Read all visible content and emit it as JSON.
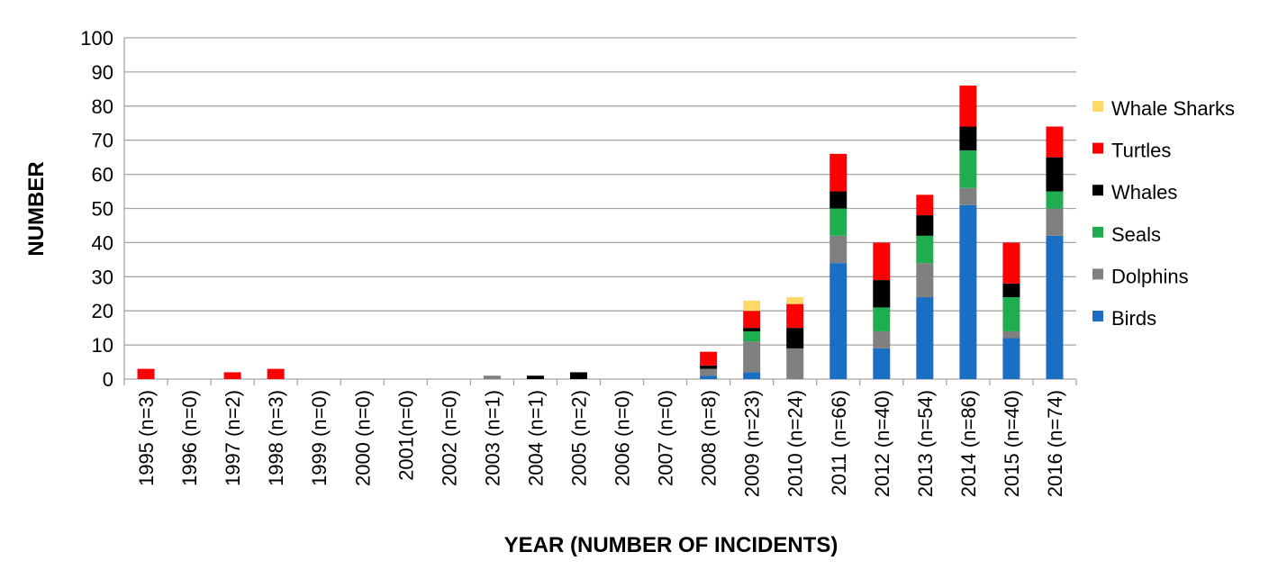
{
  "chart_data": {
    "type": "bar",
    "stacked": true,
    "title": "",
    "xlabel": "YEAR (NUMBER OF INCIDENTS)",
    "ylabel": "NUMBER",
    "ylim": [
      0,
      100
    ],
    "yticks": [
      0,
      10,
      20,
      30,
      40,
      50,
      60,
      70,
      80,
      90,
      100
    ],
    "grid": true,
    "legend_position": "right",
    "categories": [
      "1995 (n=3)",
      "1996 (n=0)",
      "1997 (n=2)",
      "1998 (n=3)",
      "1999 (n=0)",
      "2000 (n=0)",
      "2001(n=0)",
      "2002 (n=0)",
      "2003 (n=1)",
      "2004 (n=1)",
      "2005 (n=2)",
      "2006 (n=0)",
      "2007 (n=0)",
      "2008 (n=8)",
      "2009 (n=23)",
      "2010 (n=24)",
      "2011 (n=66)",
      "2012 (n=40)",
      "2013 (n=54)",
      "2014 (n=86)",
      "2015 (n=40)",
      "2016 (n=74)"
    ],
    "series": [
      {
        "name": "Birds",
        "color": "#1a6fc4",
        "values": [
          0,
          0,
          0,
          0,
          0,
          0,
          0,
          0,
          0,
          0,
          0,
          0,
          0,
          1,
          2,
          0,
          34,
          9,
          24,
          51,
          12,
          42
        ]
      },
      {
        "name": "Dolphins",
        "color": "#808080",
        "values": [
          0,
          0,
          0,
          0,
          0,
          0,
          0,
          0,
          1,
          0,
          0,
          0,
          0,
          2,
          9,
          9,
          8,
          5,
          10,
          5,
          2,
          8
        ]
      },
      {
        "name": "Seals",
        "color": "#1fae4f",
        "values": [
          0,
          0,
          0,
          0,
          0,
          0,
          0,
          0,
          0,
          0,
          0,
          0,
          0,
          0,
          3,
          0,
          8,
          7,
          8,
          11,
          10,
          5
        ]
      },
      {
        "name": "Whales",
        "color": "#000000",
        "values": [
          0,
          0,
          0,
          0,
          0,
          0,
          0,
          0,
          0,
          1,
          2,
          0,
          0,
          1,
          1,
          6,
          5,
          8,
          6,
          7,
          4,
          10
        ]
      },
      {
        "name": "Turtles",
        "color": "#ff0000",
        "values": [
          3,
          0,
          2,
          3,
          0,
          0,
          0,
          0,
          0,
          0,
          0,
          0,
          0,
          4,
          5,
          7,
          11,
          11,
          6,
          12,
          12,
          9
        ]
      },
      {
        "name": "Whale Sharks",
        "color": "#ffd966",
        "values": [
          0,
          0,
          0,
          0,
          0,
          0,
          0,
          0,
          0,
          0,
          0,
          0,
          0,
          0,
          3,
          2,
          0,
          0,
          0,
          0,
          0,
          0
        ]
      }
    ],
    "legend_order": [
      "Whale Sharks",
      "Turtles",
      "Whales",
      "Seals",
      "Dolphins",
      "Birds"
    ]
  }
}
